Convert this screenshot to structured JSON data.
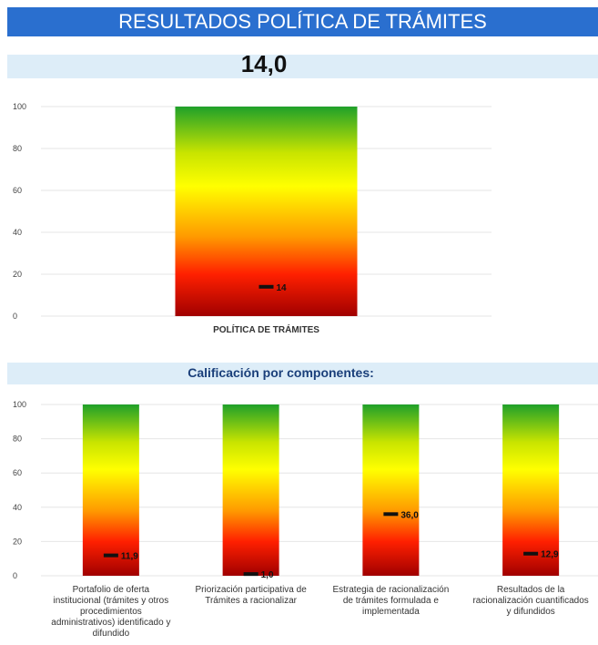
{
  "header": {
    "title": "RESULTADOS POLÍTICA DE TRÁMITES",
    "score": "14,0"
  },
  "section2": {
    "title": "Calificación por componentes:"
  },
  "chart_data": [
    {
      "type": "bar",
      "categories": [
        "POLÍTICA DE TRÁMITES"
      ],
      "values": [
        14
      ],
      "value_labels": [
        "14"
      ],
      "ylim": [
        0,
        100
      ],
      "yticks": [
        "0",
        "20",
        "40",
        "60",
        "80",
        "100"
      ],
      "fill": "vertical gradient green-yellow-red (full scale), value shown as black marker",
      "grid": true
    },
    {
      "type": "bar",
      "categories": [
        [
          "Portafolio de oferta",
          "institucional (trámites y otros",
          "procedimientos",
          "administrativos) identificado y",
          "difundido"
        ],
        [
          "Priorización participativa de",
          "Trámites a racionalizar"
        ],
        [
          "Estrategia de racionalización",
          "de trámites formulada e",
          "implementada"
        ],
        [
          "Resultados de la",
          "racionalización cuantificados",
          "y difundidos"
        ]
      ],
      "values": [
        11.9,
        1.0,
        36.0,
        12.9
      ],
      "value_labels": [
        "11,9",
        "1,0",
        "36,0",
        "12,9"
      ],
      "ylim": [
        0,
        100
      ],
      "yticks": [
        "0",
        "20",
        "40",
        "60",
        "80",
        "100"
      ],
      "fill": "vertical gradient green-yellow-red (full scale), value shown as black marker",
      "grid": true
    }
  ],
  "colors": {
    "title_bg": "#2a6fcf",
    "band_bg": "#ddedf8",
    "grad_top": "#1fa02a",
    "grad_mid": "#ffff00",
    "grad_low": "#ff2a00",
    "grad_bottom": "#a00000"
  }
}
